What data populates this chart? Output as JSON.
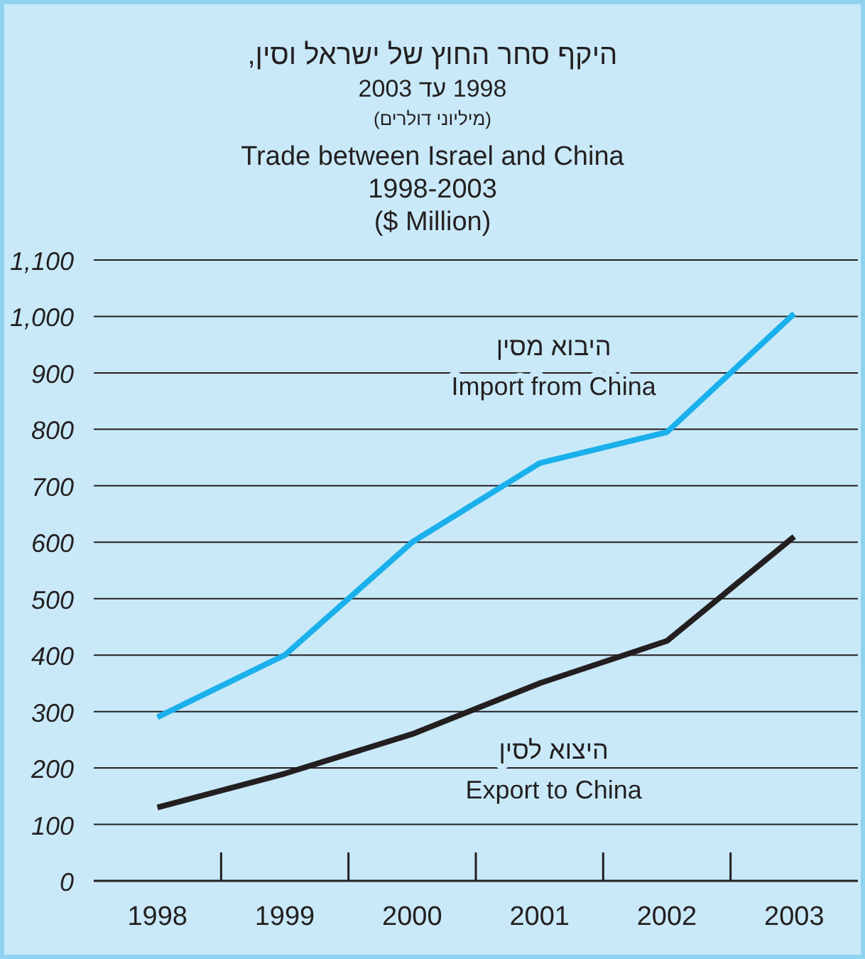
{
  "chart_data": {
    "type": "line",
    "title": "היקף סחר החוץ של ישראל וסין,\n1998 עד 2003\n(מיליוני דולרים)",
    "subtitle": "Trade between Israel and China\n1998-2003\n($ Million)",
    "categories": [
      "1998",
      "1999",
      "2000",
      "2001",
      "2002",
      "2003"
    ],
    "series": [
      {
        "name": "היבוא מסין\nImport from China",
        "color": "#1ab0ec",
        "values": [
          290,
          400,
          600,
          740,
          795,
          1005
        ]
      },
      {
        "name": "היצוא לסין\nExport to China",
        "color": "#231f20",
        "values": [
          130,
          190,
          260,
          350,
          425,
          610
        ]
      }
    ],
    "ylim": [
      0,
      1100
    ],
    "yticks": [
      0,
      100,
      200,
      300,
      400,
      500,
      600,
      700,
      800,
      900,
      {
        "value": 1000,
        "label": "1,000"
      },
      {
        "value": 1100,
        "label": "1,100"
      }
    ],
    "grid": "y",
    "marker": "none",
    "line_style": "solid"
  }
}
